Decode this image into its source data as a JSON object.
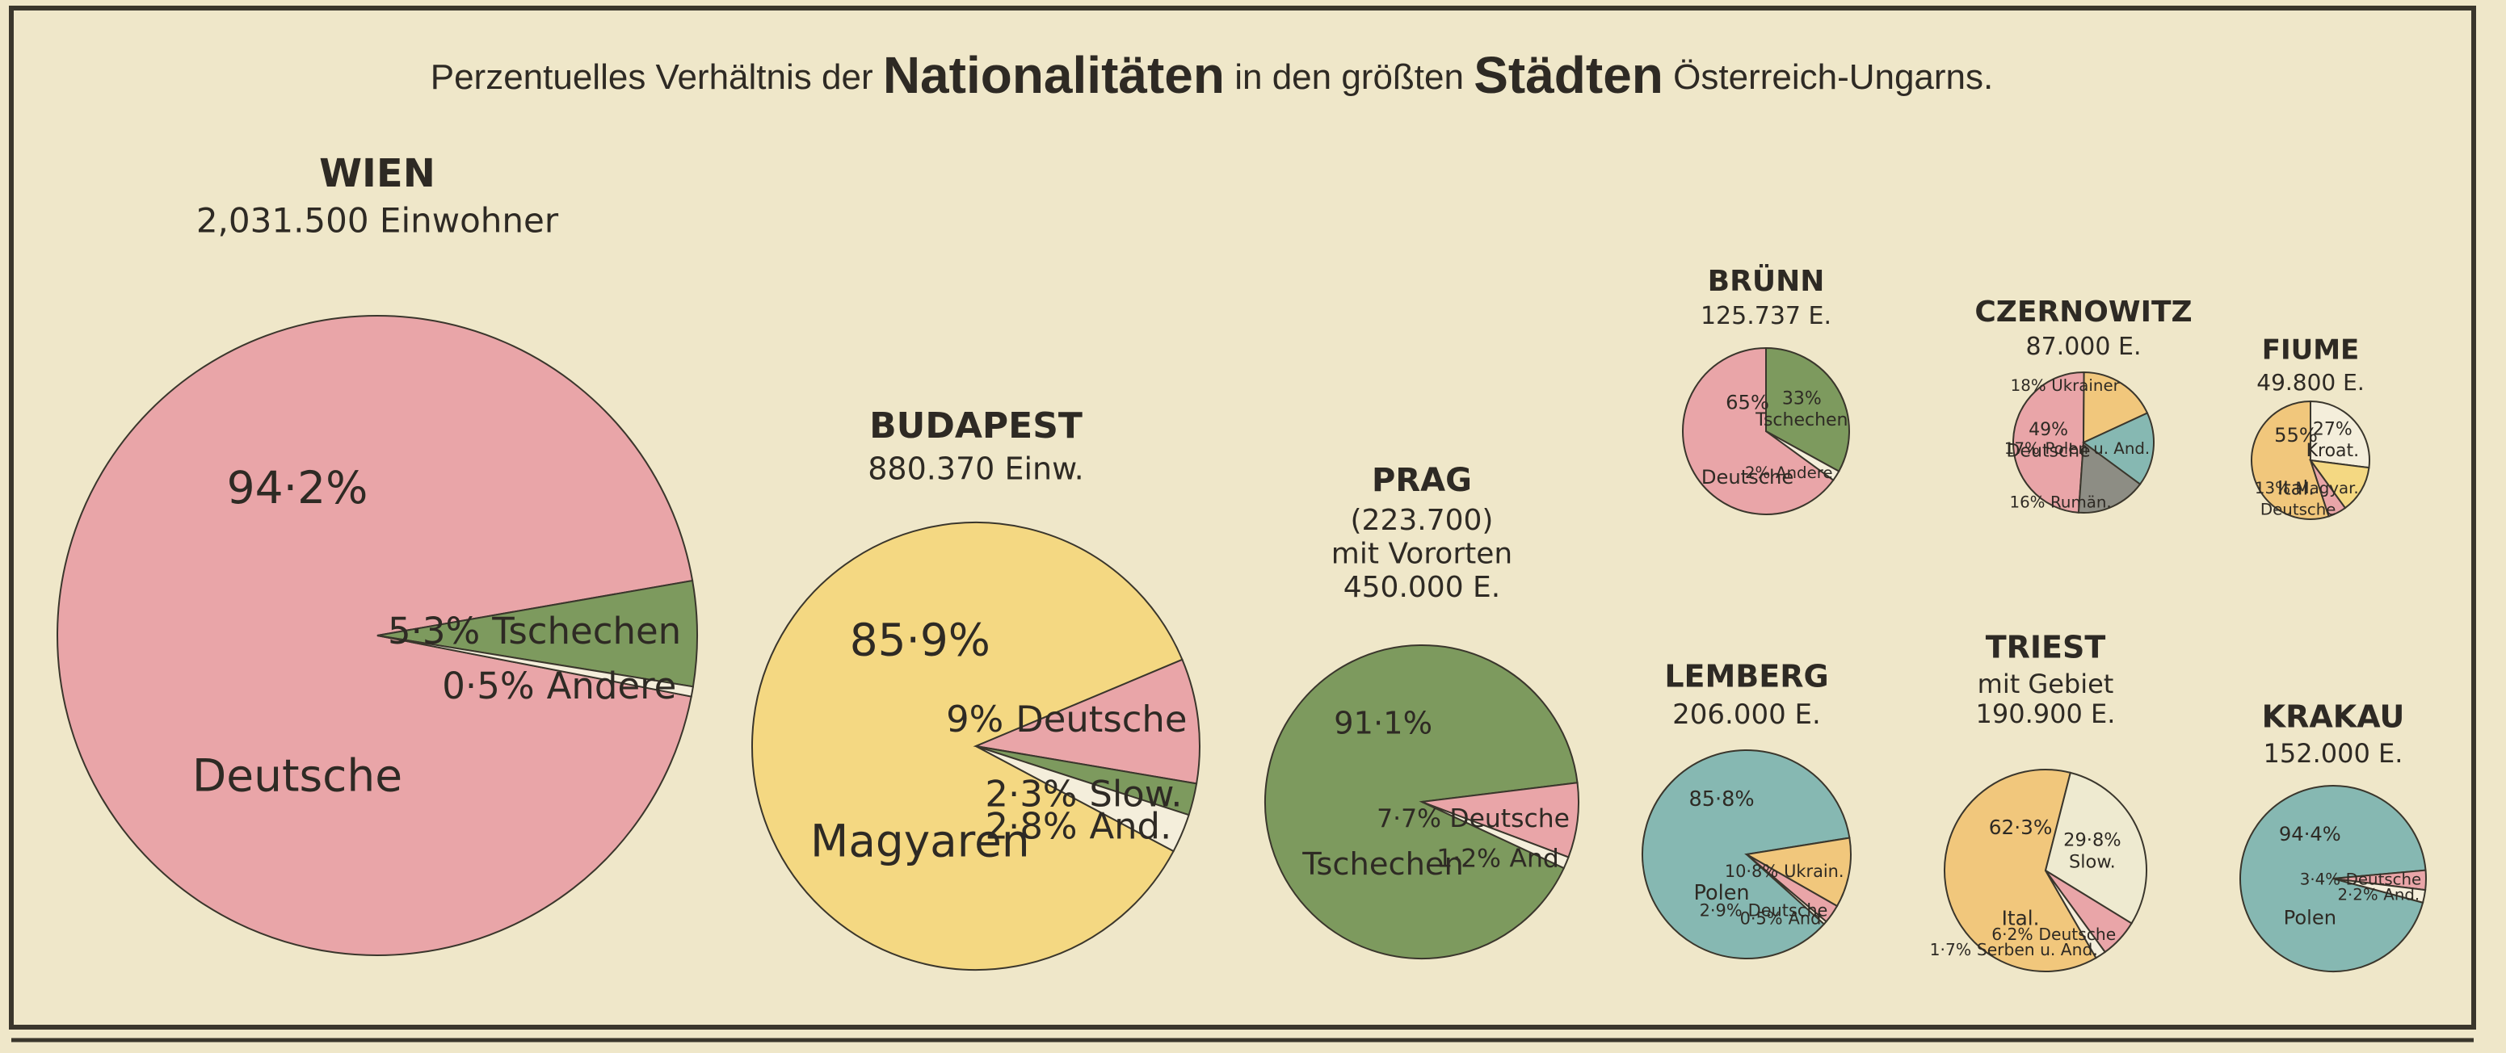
{
  "title": [
    "Perzentuelles Verhältnis der",
    "Nationalitäten",
    "in den größten",
    "Städten",
    "Österreich-Ungarns."
  ],
  "chart_data": [
    {
      "type": "pie",
      "title": "WIEN",
      "subtitle": [
        "2,031.500 Einwohner"
      ],
      "categories": [
        "Deutsche",
        "Tschechen",
        "Andere"
      ],
      "values": [
        94.2,
        5.3,
        0.5
      ],
      "value_labels": [
        "94·2%",
        "5·3%",
        "0·5%"
      ],
      "colors": [
        "#e9a5a8",
        "#7d9a5e",
        "#f4eedb"
      ]
    },
    {
      "type": "pie",
      "title": "BUDAPEST",
      "subtitle": [
        "880.370 Einw."
      ],
      "categories": [
        "Magyaren",
        "Deutsche",
        "Slow.",
        "And."
      ],
      "values": [
        85.9,
        9,
        2.3,
        2.8
      ],
      "value_labels": [
        "85·9%",
        "9%",
        "2·3%",
        "2·8%"
      ],
      "colors": [
        "#f4d882",
        "#e9a5a8",
        "#7d9a5e",
        "#f4eedb"
      ]
    },
    {
      "type": "pie",
      "title": "PRAG",
      "subtitle": [
        "(223.700)",
        "mit Vororten",
        "450.000 E."
      ],
      "categories": [
        "Tschechen",
        "Deutsche",
        "And"
      ],
      "values": [
        91.1,
        7.7,
        1.2
      ],
      "value_labels": [
        "91·1%",
        "7·7%",
        "1·2%"
      ],
      "colors": [
        "#7d9a5e",
        "#e9a5a8",
        "#f4eedb"
      ]
    },
    {
      "type": "pie",
      "title": "BRÜNN",
      "subtitle": [
        "125.737 E."
      ],
      "categories": [
        "Deutsche",
        "Tschechen",
        "Andere"
      ],
      "values": [
        65,
        33,
        2
      ],
      "value_labels": [
        "65%",
        "33%",
        "2%"
      ],
      "colors": [
        "#e9a5a8",
        "#7d9a5e",
        "#f4eedb"
      ]
    },
    {
      "type": "pie",
      "title": "CZERNOWITZ",
      "subtitle": [
        "87.000 E."
      ],
      "categories": [
        "Deutsche",
        "Ukrainer",
        "Polen u. And.",
        "Rumän."
      ],
      "values": [
        49,
        18,
        17,
        16
      ],
      "value_labels": [
        "49%",
        "18%",
        "17%",
        "16%"
      ],
      "colors": [
        "#e9a5a8",
        "#f1c77c",
        "#86b8b2",
        "#8d8d84"
      ]
    },
    {
      "type": "pie",
      "title": "FIUME",
      "subtitle": [
        "49.800 E."
      ],
      "categories": [
        "Ital.",
        "Kroat.",
        "Magyar.",
        "Deutsche"
      ],
      "values": [
        55,
        27,
        13,
        5
      ],
      "value_labels": [
        "55%",
        "27%",
        "13%",
        null
      ],
      "colors": [
        "#f1c77c",
        "#f4eedb",
        "#f4d882",
        "#e9a5a8"
      ]
    },
    {
      "type": "pie",
      "title": "LEMBERG",
      "subtitle": [
        "206.000 E."
      ],
      "categories": [
        "Polen",
        "Ukrain.",
        "Deutsche",
        "And"
      ],
      "values": [
        85.8,
        10.8,
        2.9,
        0.5
      ],
      "value_labels": [
        "85·8%",
        "10·8%",
        "2·9%",
        "0·5%"
      ],
      "colors": [
        "#86b8b2",
        "#f1c77c",
        "#e9a5a8",
        "#f4eedb"
      ]
    },
    {
      "type": "pie",
      "title": "TRIEST",
      "subtitle": [
        "mit Gebiet",
        "190.900 E."
      ],
      "categories": [
        "Ital.",
        "Slow.",
        "Deutsche",
        "Serben u. And."
      ],
      "values": [
        62.3,
        29.8,
        6.2,
        1.7
      ],
      "value_labels": [
        "62·3%",
        "29·8%",
        "6·2%",
        "1·7%"
      ],
      "colors": [
        "#f1c77c",
        "#eeead0",
        "#e9a5a8",
        "#f4eedb"
      ]
    },
    {
      "type": "pie",
      "title": "KRAKAU",
      "subtitle": [
        "152.000 E."
      ],
      "categories": [
        "Polen",
        "Deutsche",
        "And."
      ],
      "values": [
        94.4,
        3.4,
        2.2
      ],
      "value_labels": [
        "94·4%",
        "3·4%",
        "2·2%"
      ],
      "colors": [
        "#86b8b2",
        "#e9a5a8",
        "#f4eedb"
      ]
    }
  ]
}
